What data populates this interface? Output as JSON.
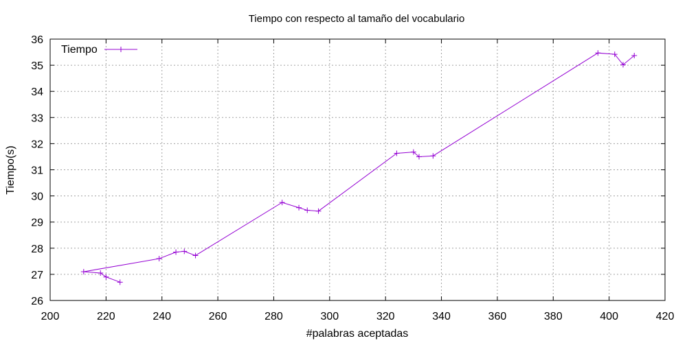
{
  "chart_data": {
    "type": "line",
    "title": "Tiempo con respecto al tamaño del vocabulario",
    "xlabel": "#palabras aceptadas",
    "ylabel": "Tiempo(s)",
    "xlim": [
      200,
      420
    ],
    "ylim": [
      26,
      36
    ],
    "x_ticks": [
      200,
      220,
      240,
      260,
      280,
      300,
      320,
      340,
      360,
      380,
      400,
      420
    ],
    "y_ticks": [
      26,
      27,
      28,
      29,
      30,
      31,
      32,
      33,
      34,
      35,
      36
    ],
    "grid": true,
    "legend_position": "top-left",
    "series": [
      {
        "name": "Tiempo",
        "color": "#9400d3",
        "marker": "plus",
        "x": [
          225,
          220,
          218,
          212,
          239,
          245,
          248,
          252,
          283,
          289,
          292,
          296,
          324,
          330,
          332,
          337,
          396,
          402,
          405,
          409
        ],
        "y": [
          26.7,
          26.9,
          27.05,
          27.1,
          27.6,
          27.85,
          27.88,
          27.72,
          29.75,
          29.55,
          29.45,
          29.42,
          31.63,
          31.68,
          31.5,
          31.53,
          35.47,
          35.42,
          35.02,
          35.37
        ]
      }
    ]
  }
}
